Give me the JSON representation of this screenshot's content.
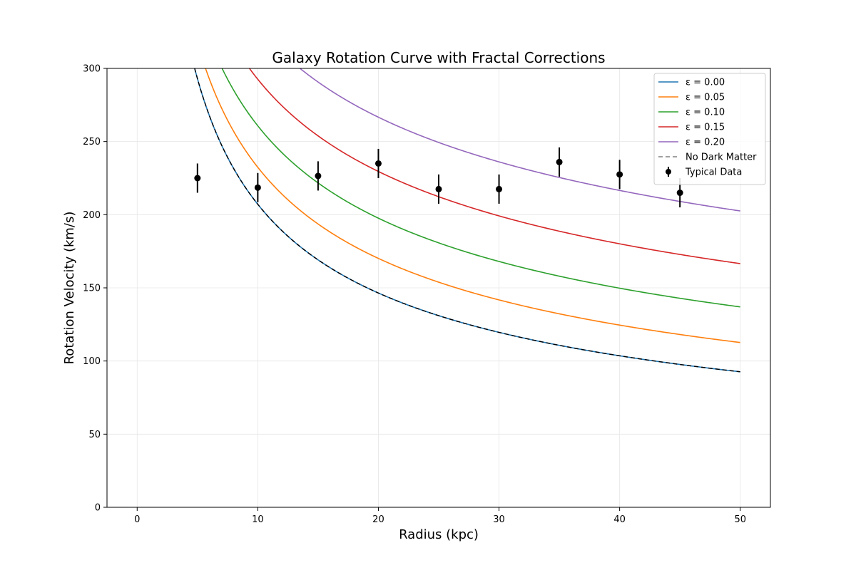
{
  "chart_data": {
    "type": "line",
    "title": "Galaxy Rotation Curve with Fractal Corrections",
    "xlabel": "Radius (kpc)",
    "ylabel": "Rotation Velocity (km/s)",
    "xlim": [
      -2.5,
      52.5
    ],
    "ylim": [
      0,
      300
    ],
    "xticks": [
      0,
      10,
      20,
      30,
      40,
      50
    ],
    "yticks": [
      0,
      50,
      100,
      150,
      200,
      250,
      300
    ],
    "grid": true,
    "legend_position": "top-right",
    "curve_model": {
      "v_at_r1": 655,
      "r_start": 0.5,
      "r_end": 50
    },
    "series": [
      {
        "name": "ε = 0.00",
        "epsilon": 0.0,
        "color": "#1f77b4",
        "style": "solid"
      },
      {
        "name": "ε = 0.05",
        "epsilon": 0.05,
        "color": "#ff7f0e",
        "style": "solid"
      },
      {
        "name": "ε = 0.10",
        "epsilon": 0.1,
        "color": "#2ca02c",
        "style": "solid"
      },
      {
        "name": "ε = 0.15",
        "epsilon": 0.15,
        "color": "#d62728",
        "style": "solid"
      },
      {
        "name": "ε = 0.20",
        "epsilon": 0.2,
        "color": "#9467bd",
        "style": "solid"
      },
      {
        "name": "No Dark Matter",
        "epsilon": 0.0,
        "color": "#000000",
        "style": "dashed",
        "legend_color": "#808080"
      }
    ],
    "data_points": {
      "name": "Typical Data",
      "color": "#000000",
      "x": [
        5,
        10,
        15,
        20,
        25,
        30,
        35,
        40,
        45
      ],
      "y": [
        225,
        218.5,
        226.5,
        235,
        217.5,
        217.5,
        236,
        227.5,
        215
      ],
      "error": [
        10,
        10,
        10,
        10,
        10,
        10,
        10,
        10,
        10
      ]
    }
  }
}
